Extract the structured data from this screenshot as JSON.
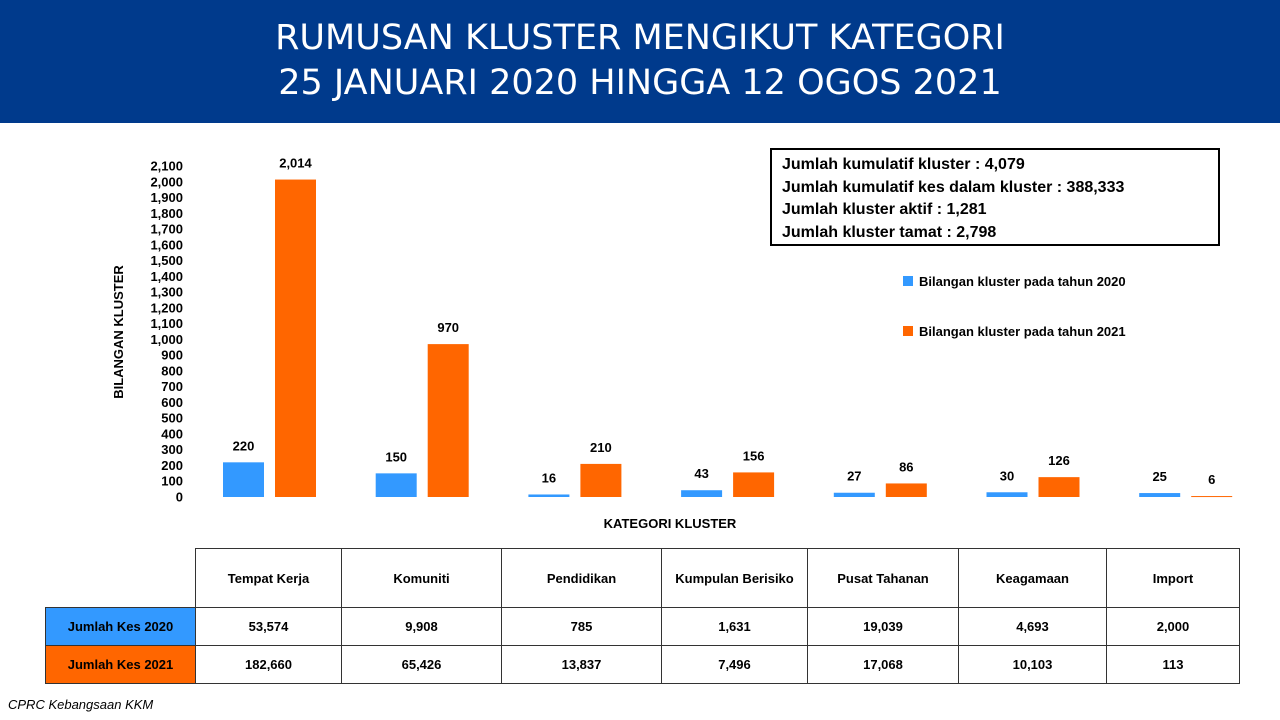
{
  "header": {
    "title_line1": "RUMUSAN KLUSTER MENGIKUT KATEGORI",
    "title_line2": "25 JANUARI 2020 HINGGA 12 OGOS 2021"
  },
  "summary": {
    "line1": "Jumlah kumulatif kluster : 4,079",
    "line2": "Jumlah kumulatif kes dalam kluster : 388,333",
    "line3": "Jumlah kluster aktif : 1,281",
    "line4": "Jumlah kluster tamat : 2,798"
  },
  "chart_data": {
    "type": "bar",
    "title": "",
    "xlabel": "KATEGORI KLUSTER",
    "ylabel": "BILANGAN KLUSTER",
    "ylim": [
      0,
      2100
    ],
    "ytick_step": 100,
    "grid": false,
    "legend_position": "right",
    "categories": [
      "Tempat Kerja",
      "Komuniti",
      "Pendidikan",
      "Kumpulan Berisiko",
      "Pusat Tahanan",
      "Keagamaan",
      "Import"
    ],
    "series": [
      {
        "name": "Bilangan kluster pada tahun 2020",
        "color": "#3399ff",
        "values": [
          220,
          150,
          16,
          43,
          27,
          30,
          25
        ]
      },
      {
        "name": "Bilangan kluster pada tahun 2021",
        "color": "#ff6600",
        "values": [
          2014,
          970,
          210,
          156,
          86,
          126,
          6
        ]
      }
    ]
  },
  "table": {
    "columns": [
      "Tempat Kerja",
      "Komuniti",
      "Pendidikan",
      "Kumpulan Berisiko",
      "Pusat Tahanan",
      "Keagamaan",
      "Import"
    ],
    "rows": [
      {
        "label": "Jumlah Kes 2020",
        "color": "#3399ff",
        "values": [
          "53,574",
          "9,908",
          "785",
          "1,631",
          "19,039",
          "4,693",
          "2,000"
        ]
      },
      {
        "label": "Jumlah Kes 2021",
        "color": "#ff6600",
        "values": [
          "182,660",
          "65,426",
          "13,837",
          "7,496",
          "17,068",
          "10,103",
          "113"
        ]
      }
    ]
  },
  "source": "CPRC Kebangsaan KKM"
}
